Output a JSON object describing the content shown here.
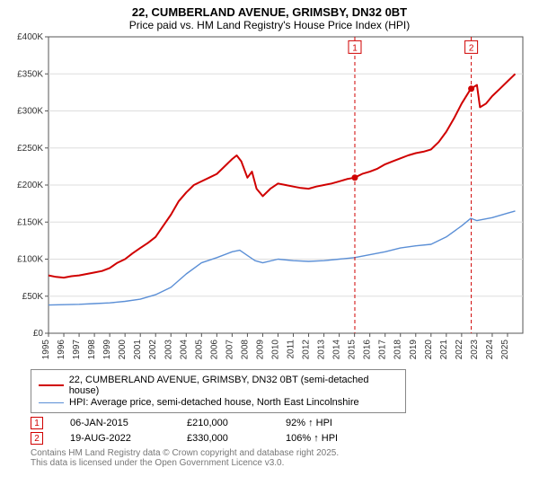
{
  "title_line1": "22, CUMBERLAND AVENUE, GRIMSBY, DN32 0BT",
  "title_line2": "Price paid vs. HM Land Registry's House Price Index (HPI)",
  "chart": {
    "type": "line",
    "plot_bg": "#ffffff",
    "grid_color": "#dddddd",
    "axis_color": "#555555",
    "tick_color": "#333333",
    "tick_fontsize": 10,
    "xlim": [
      1995,
      2026
    ],
    "ylim": [
      0,
      400000
    ],
    "y_ticks": [
      0,
      50000,
      100000,
      150000,
      200000,
      250000,
      300000,
      350000,
      400000
    ],
    "y_tick_labels": [
      "£0",
      "£50K",
      "£100K",
      "£150K",
      "£200K",
      "£250K",
      "£300K",
      "£350K",
      "£400K"
    ],
    "x_ticks": [
      1995,
      1996,
      1997,
      1998,
      1999,
      2000,
      2001,
      2002,
      2003,
      2004,
      2005,
      2006,
      2007,
      2008,
      2009,
      2010,
      2011,
      2012,
      2013,
      2014,
      2015,
      2016,
      2017,
      2018,
      2019,
      2020,
      2021,
      2022,
      2023,
      2024,
      2025
    ],
    "series": [
      {
        "name": "22, CUMBERLAND AVENUE, GRIMSBY, DN32 0BT (semi-detached house)",
        "color": "#d00000",
        "width": 2,
        "points": [
          [
            1995,
            78000
          ],
          [
            1995.5,
            76000
          ],
          [
            1996,
            75000
          ],
          [
            1996.5,
            77000
          ],
          [
            1997,
            78000
          ],
          [
            1997.5,
            80000
          ],
          [
            1998,
            82000
          ],
          [
            1998.5,
            84000
          ],
          [
            1999,
            88000
          ],
          [
            1999.5,
            95000
          ],
          [
            2000,
            100000
          ],
          [
            2000.5,
            108000
          ],
          [
            2001,
            115000
          ],
          [
            2001.5,
            122000
          ],
          [
            2002,
            130000
          ],
          [
            2002.5,
            145000
          ],
          [
            2003,
            160000
          ],
          [
            2003.5,
            178000
          ],
          [
            2004,
            190000
          ],
          [
            2004.5,
            200000
          ],
          [
            2005,
            205000
          ],
          [
            2005.5,
            210000
          ],
          [
            2006,
            215000
          ],
          [
            2006.5,
            225000
          ],
          [
            2007,
            235000
          ],
          [
            2007.3,
            240000
          ],
          [
            2007.6,
            232000
          ],
          [
            2008,
            210000
          ],
          [
            2008.3,
            218000
          ],
          [
            2008.6,
            195000
          ],
          [
            2009,
            185000
          ],
          [
            2009.5,
            195000
          ],
          [
            2010,
            202000
          ],
          [
            2010.5,
            200000
          ],
          [
            2011,
            198000
          ],
          [
            2011.5,
            196000
          ],
          [
            2012,
            195000
          ],
          [
            2012.5,
            198000
          ],
          [
            2013,
            200000
          ],
          [
            2013.5,
            202000
          ],
          [
            2014,
            205000
          ],
          [
            2014.5,
            208000
          ],
          [
            2015,
            210000
          ],
          [
            2015.5,
            215000
          ],
          [
            2016,
            218000
          ],
          [
            2016.5,
            222000
          ],
          [
            2017,
            228000
          ],
          [
            2017.5,
            232000
          ],
          [
            2018,
            236000
          ],
          [
            2018.5,
            240000
          ],
          [
            2019,
            243000
          ],
          [
            2019.5,
            245000
          ],
          [
            2020,
            248000
          ],
          [
            2020.5,
            258000
          ],
          [
            2021,
            272000
          ],
          [
            2021.5,
            290000
          ],
          [
            2022,
            310000
          ],
          [
            2022.6,
            330000
          ],
          [
            2023,
            335000
          ],
          [
            2023.2,
            305000
          ],
          [
            2023.6,
            310000
          ],
          [
            2024,
            320000
          ],
          [
            2024.5,
            330000
          ],
          [
            2025,
            340000
          ],
          [
            2025.5,
            350000
          ]
        ]
      },
      {
        "name": "HPI: Average price, semi-detached house, North East Lincolnshire",
        "color": "#5b8fd6",
        "width": 1.4,
        "points": [
          [
            1995,
            38000
          ],
          [
            1996,
            38500
          ],
          [
            1997,
            39000
          ],
          [
            1998,
            40000
          ],
          [
            1999,
            41000
          ],
          [
            2000,
            43000
          ],
          [
            2001,
            46000
          ],
          [
            2002,
            52000
          ],
          [
            2003,
            62000
          ],
          [
            2004,
            80000
          ],
          [
            2005,
            95000
          ],
          [
            2006,
            102000
          ],
          [
            2007,
            110000
          ],
          [
            2007.5,
            112000
          ],
          [
            2008,
            105000
          ],
          [
            2008.5,
            98000
          ],
          [
            2009,
            95000
          ],
          [
            2010,
            100000
          ],
          [
            2011,
            98000
          ],
          [
            2012,
            97000
          ],
          [
            2013,
            98000
          ],
          [
            2014,
            100000
          ],
          [
            2015,
            102000
          ],
          [
            2016,
            106000
          ],
          [
            2017,
            110000
          ],
          [
            2018,
            115000
          ],
          [
            2019,
            118000
          ],
          [
            2020,
            120000
          ],
          [
            2021,
            130000
          ],
          [
            2022,
            145000
          ],
          [
            2022.6,
            155000
          ],
          [
            2023,
            152000
          ],
          [
            2024,
            156000
          ],
          [
            2025,
            162000
          ],
          [
            2025.5,
            165000
          ]
        ]
      }
    ],
    "markers": [
      {
        "num": "1",
        "x": 2015.02,
        "line_color": "#d00000",
        "dash": "4,3",
        "label_y": 385000,
        "dot_y": 210000
      },
      {
        "num": "2",
        "x": 2022.63,
        "line_color": "#d00000",
        "dash": "4,3",
        "label_y": 385000,
        "dot_y": 330000
      }
    ]
  },
  "legend": {
    "items": [
      {
        "color": "#d00000",
        "width": 2,
        "label": "22, CUMBERLAND AVENUE, GRIMSBY, DN32 0BT (semi-detached house)"
      },
      {
        "color": "#5b8fd6",
        "width": 1.4,
        "label": "HPI: Average price, semi-detached house, North East Lincolnshire"
      }
    ]
  },
  "transactions": [
    {
      "num": "1",
      "date": "06-JAN-2015",
      "price": "£210,000",
      "pct": "92% ↑ HPI"
    },
    {
      "num": "2",
      "date": "19-AUG-2022",
      "price": "£330,000",
      "pct": "106% ↑ HPI"
    }
  ],
  "footer_line1": "Contains HM Land Registry data © Crown copyright and database right 2025.",
  "footer_line2": "This data is licensed under the Open Government Licence v3.0."
}
